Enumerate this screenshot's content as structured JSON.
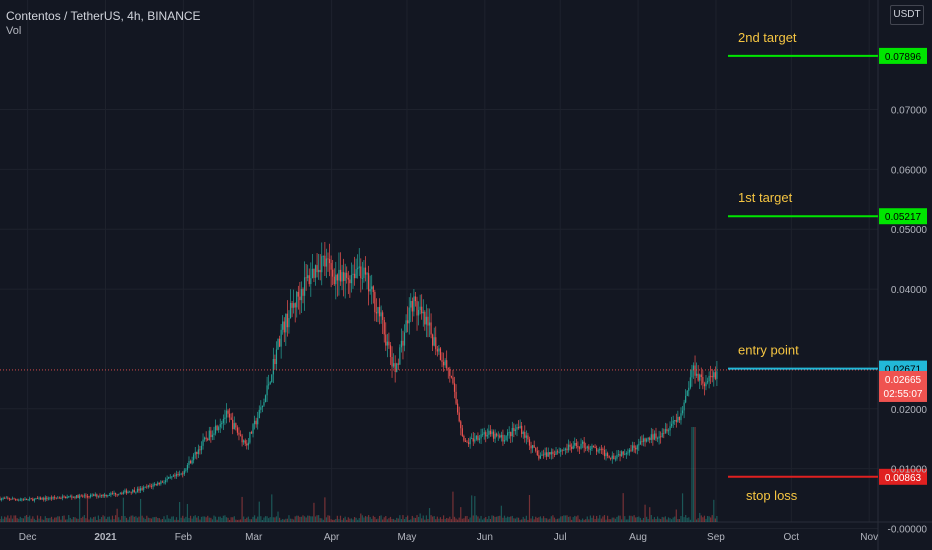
{
  "header": {
    "symbol_line": "Contentos / TetherUS, 4h, BINANCE",
    "indicator": "Vol",
    "currency_button": "USDT"
  },
  "colors": {
    "background": "#131722",
    "grid": "#1e222d",
    "up": "#26a69a",
    "down": "#ef5350",
    "target_line": "#00e600",
    "entry_line": "#22b8d8",
    "stop_line": "#e02020",
    "annotation_text": "#f5c542"
  },
  "chart_data": {
    "type": "candlestick",
    "title": "Contentos / TetherUS, 4h, BINANCE",
    "y_axis": {
      "ticks": [
        "0.07000",
        "0.06000",
        "0.05000",
        "0.04000",
        "0.02000",
        "0.01000",
        "-0.00000"
      ],
      "tick_values": [
        0.07,
        0.06,
        0.05,
        0.04,
        0.02,
        0.01,
        0.0
      ],
      "ylim": [
        -0.0036,
        0.0883
      ],
      "scale": "linear"
    },
    "x_axis": {
      "ticks": [
        "Dec",
        "2021",
        "Feb",
        "Mar",
        "Apr",
        "May",
        "Jun",
        "Jul",
        "Aug",
        "Sep",
        "Oct",
        "Nov"
      ],
      "tick_dates": [
        "2020-12-01",
        "2021-01-01",
        "2021-02-01",
        "2021-03-01",
        "2021-04-01",
        "2021-05-01",
        "2021-06-01",
        "2021-07-01",
        "2021-08-01",
        "2021-09-01",
        "2021-10-01",
        "2021-11-01"
      ],
      "range": [
        "2020-11-20",
        "2021-11-26"
      ]
    },
    "price_path": [
      [
        "2020-11-20",
        0.005
      ],
      [
        "2020-12-01",
        0.0048
      ],
      [
        "2020-12-15",
        0.0052
      ],
      [
        "2021-01-01",
        0.0056
      ],
      [
        "2021-01-15",
        0.0065
      ],
      [
        "2021-01-31",
        0.009
      ],
      [
        "2021-02-10",
        0.015
      ],
      [
        "2021-02-18",
        0.019
      ],
      [
        "2021-02-26",
        0.014
      ],
      [
        "2021-03-05",
        0.021
      ],
      [
        "2021-03-12",
        0.033
      ],
      [
        "2021-03-20",
        0.04
      ],
      [
        "2021-03-28",
        0.045
      ],
      [
        "2021-04-05",
        0.041
      ],
      [
        "2021-04-12",
        0.044
      ],
      [
        "2021-04-20",
        0.036
      ],
      [
        "2021-04-26",
        0.026
      ],
      [
        "2021-05-03",
        0.038
      ],
      [
        "2021-05-10",
        0.033
      ],
      [
        "2021-05-18",
        0.026
      ],
      [
        "2021-05-24",
        0.014
      ],
      [
        "2021-05-31",
        0.016
      ],
      [
        "2021-06-08",
        0.015
      ],
      [
        "2021-06-15",
        0.017
      ],
      [
        "2021-06-22",
        0.012
      ],
      [
        "2021-06-30",
        0.013
      ],
      [
        "2021-07-10",
        0.014
      ],
      [
        "2021-07-22",
        0.012
      ],
      [
        "2021-08-01",
        0.014
      ],
      [
        "2021-08-10",
        0.016
      ],
      [
        "2021-08-18",
        0.019
      ],
      [
        "2021-08-23",
        0.027
      ],
      [
        "2021-08-28",
        0.024
      ],
      [
        "2021-09-02",
        0.0267
      ]
    ],
    "volume_max_date": "2021-08-23",
    "horizontal_levels": [
      {
        "label": "2nd target",
        "value": 0.07896,
        "price_label": "0.07896",
        "color": "#00e600"
      },
      {
        "label": "1st target",
        "value": 0.05217,
        "price_label": "0.05217",
        "color": "#00e600"
      },
      {
        "label": "entry point",
        "value": 0.02671,
        "price_label": "0.02671",
        "color": "#22b8d8"
      },
      {
        "label": "stop loss",
        "value": 0.00863,
        "price_label": "0.00863",
        "color": "#e02020"
      }
    ],
    "last_price": {
      "value": 0.02665,
      "price_label": "0.02665",
      "countdown": "02:55:07"
    }
  }
}
